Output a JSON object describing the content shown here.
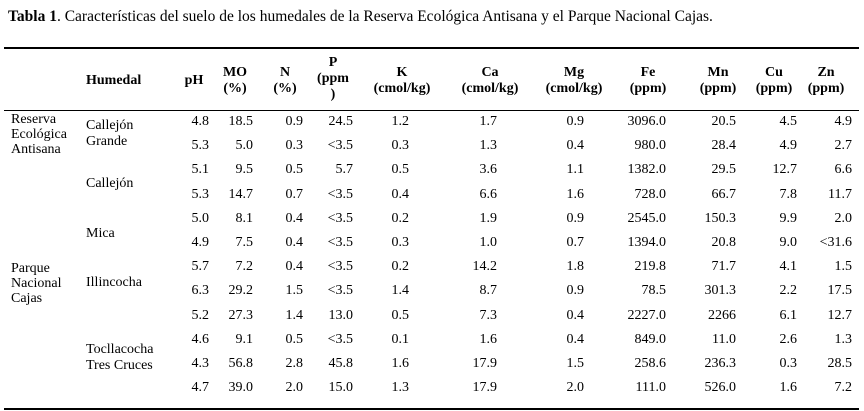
{
  "caption": {
    "label": "Tabla 1",
    "text": ". Características del suelo de los humedales de la Reserva Ecológica Antisana y el Parque Nacional Cajas."
  },
  "headers": {
    "humedal": "Humedal",
    "ph": "pH",
    "mo": [
      "MO",
      "(%)"
    ],
    "n": [
      "N",
      "(%)"
    ],
    "p": [
      "P",
      "(ppm",
      ")"
    ],
    "k": [
      "K",
      "(cmol/kg)"
    ],
    "ca": [
      "Ca",
      "(cmol/kg)"
    ],
    "mg": [
      "Mg",
      "(cmol/kg)"
    ],
    "fe": [
      "Fe",
      "(ppm)"
    ],
    "mn": [
      "Mn",
      "(ppm)"
    ],
    "cu": [
      "Cu",
      "(ppm)"
    ],
    "zn": [
      "Zn",
      "(ppm)"
    ]
  },
  "regions": [
    {
      "lines": [
        "Reserva",
        "Ecológica",
        "Antisana"
      ]
    },
    {
      "lines": [
        "Parque",
        "Nacional",
        "Cajas"
      ]
    }
  ],
  "wetlands": [
    {
      "lines": [
        "Callejón",
        "Grande"
      ]
    },
    {
      "lines": [
        "Callejón"
      ]
    },
    {
      "lines": [
        "Mica"
      ]
    },
    {
      "lines": [
        "Illincocha"
      ]
    },
    {
      "lines": [
        "Tocllacocha",
        "Tres Cruces"
      ]
    }
  ],
  "rows": [
    [
      "4.8",
      "18.5",
      "0.9",
      "24.5",
      "1.2",
      "1.7",
      "0.9",
      "3096.0",
      "20.5",
      "4.5",
      "4.9"
    ],
    [
      "5.3",
      "5.0",
      "0.3",
      "<3.5",
      "0.3",
      "1.3",
      "0.4",
      "980.0",
      "28.4",
      "4.9",
      "2.7"
    ],
    [
      "5.1",
      "9.5",
      "0.5",
      "5.7",
      "0.5",
      "3.6",
      "1.1",
      "1382.0",
      "29.5",
      "12.7",
      "6.6"
    ],
    [
      "5.3",
      "14.7",
      "0.7",
      "<3.5",
      "0.4",
      "6.6",
      "1.6",
      "728.0",
      "66.7",
      "7.8",
      "11.7"
    ],
    [
      "5.0",
      "8.1",
      "0.4",
      "<3.5",
      "0.2",
      "1.9",
      "0.9",
      "2545.0",
      "150.3",
      "9.9",
      "2.0"
    ],
    [
      "4.9",
      "7.5",
      "0.4",
      "<3.5",
      "0.3",
      "1.0",
      "0.7",
      "1394.0",
      "20.8",
      "9.0",
      "<31.6"
    ],
    [
      "5.7",
      "7.2",
      "0.4",
      "<3.5",
      "0.2",
      "14.2",
      "1.8",
      "219.8",
      "71.7",
      "4.1",
      "1.5"
    ],
    [
      "6.3",
      "29.2",
      "1.5",
      "<3.5",
      "1.4",
      "8.7",
      "0.9",
      "78.5",
      "301.3",
      "2.2",
      "17.5"
    ],
    [
      "5.2",
      "27.3",
      "1.4",
      "13.0",
      "0.5",
      "7.3",
      "0.4",
      "2227.0",
      "2266",
      "6.1",
      "12.7"
    ],
    [
      "4.6",
      "9.1",
      "0.5",
      "<3.5",
      "0.1",
      "1.6",
      "0.4",
      "849.0",
      "11.0",
      "2.6",
      "1.3"
    ],
    [
      "4.3",
      "56.8",
      "2.8",
      "45.8",
      "1.6",
      "17.9",
      "1.5",
      "258.6",
      "236.3",
      "0.3",
      "28.5"
    ],
    [
      "4.7",
      "39.0",
      "2.0",
      "15.0",
      "1.3",
      "17.9",
      "2.0",
      "111.0",
      "526.0",
      "1.6",
      "7.2"
    ]
  ]
}
